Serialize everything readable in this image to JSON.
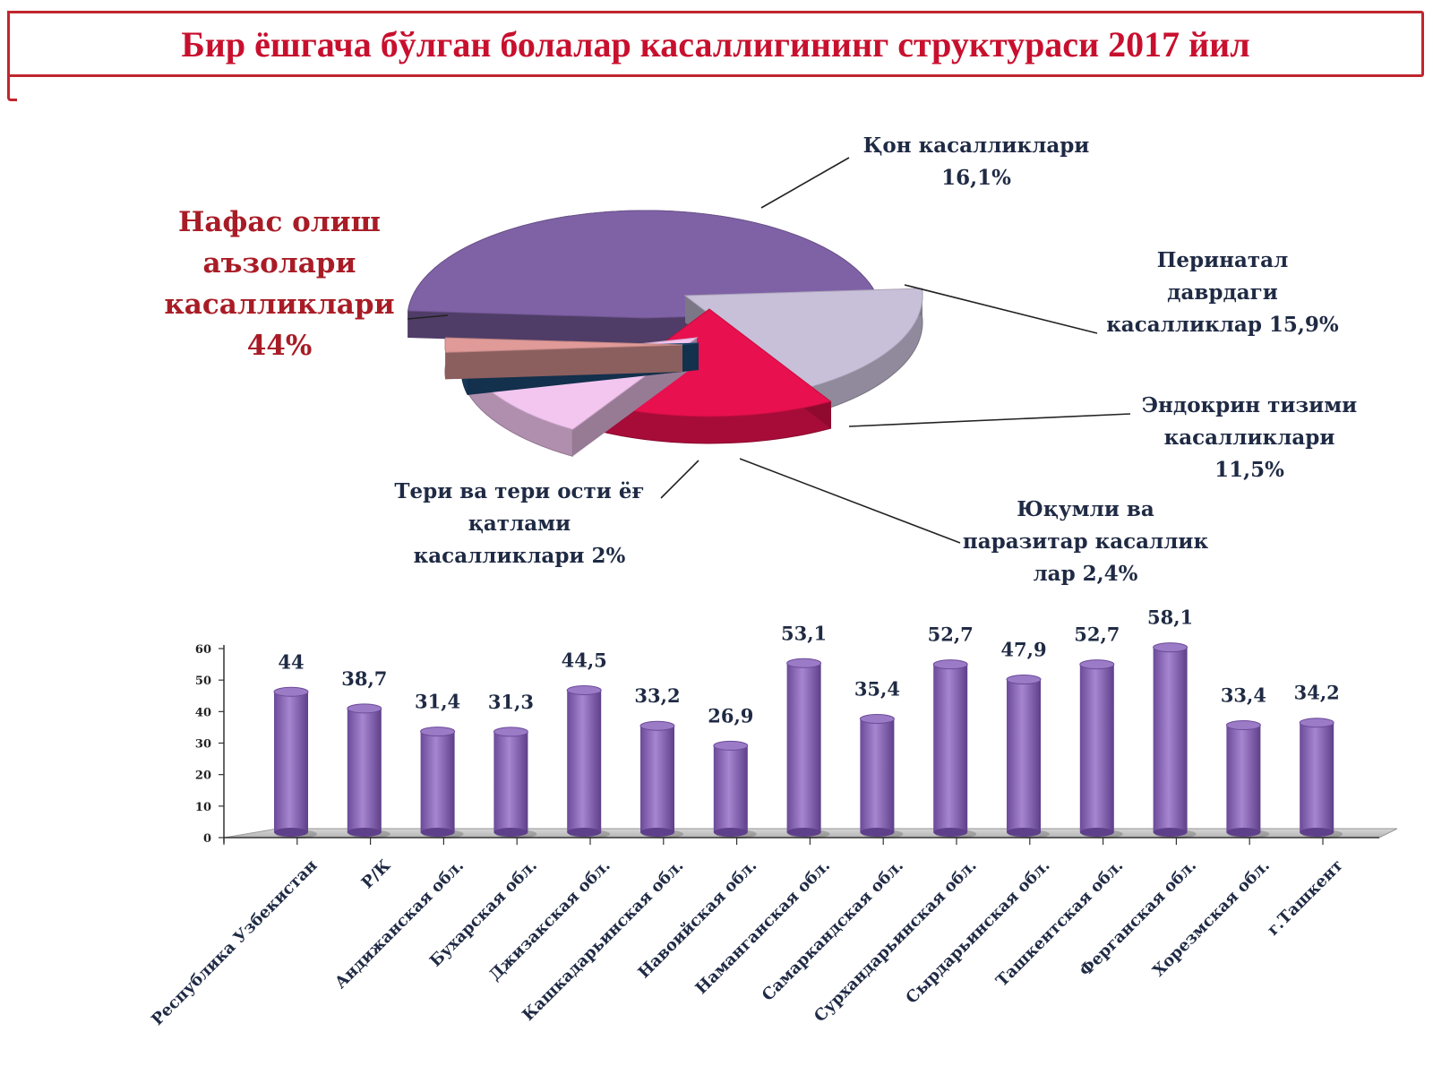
{
  "title": "Бир ёшгача бўлган болалар касаллигининг структураси 2017 йил",
  "colors": {
    "title": "#c8102e",
    "bar": "#8a63b8",
    "highlight_label": "#c8102e"
  },
  "chart_data": [
    {
      "type": "pie",
      "title": "",
      "slices": [
        {
          "label_lines": [
            "Нафас олиш",
            "аъзолари",
            "касалликлари",
            "44%"
          ],
          "value": 44,
          "color": "#7f62a6"
        },
        {
          "label_lines": [
            "Қон касалликлари",
            "16,1%"
          ],
          "value": 16.1,
          "color": "#c8c0d8"
        },
        {
          "label_lines": [
            "Перинатал",
            "даврдаги",
            "касалликлар 15,9%"
          ],
          "value": 15.9,
          "color": "#e8104e"
        },
        {
          "label_lines": [
            "Эндокрин  тизими",
            "касалликлари",
            "11,5%"
          ],
          "value": 11.5,
          "color": "#f3c6f0"
        },
        {
          "label_lines": [
            "Юқумли ва",
            "паразитар касаллик",
            "лар 2,4%"
          ],
          "value": 2.4,
          "color": "#1f4e7a"
        },
        {
          "label_lines": [
            "Тери ва тери ости ёғ",
            "қатлами",
            "касалликлари 2%"
          ],
          "value": 2,
          "color": "#e09a98"
        }
      ]
    },
    {
      "type": "bar",
      "title": "",
      "categories": [
        "Республика Узбекистан",
        "Р/К",
        "Андижанская обл.",
        "Бухарская обл.",
        "Джизакская обл.",
        "Кашкадарьинская обл.",
        "Навоийская обл.",
        "Наманганская обл.",
        "Самаркандская обл.",
        "Сурхандарьинская обл.",
        "Сырдарьинская обл.",
        "Ташкентская обл.",
        "Ферганская обл.",
        "Хорезмская обл.",
        "г.Ташкент"
      ],
      "values": [
        44,
        38.7,
        31.4,
        31.3,
        44.5,
        33.2,
        26.9,
        53.1,
        35.4,
        52.7,
        47.9,
        52.7,
        58.1,
        33.4,
        34.2
      ],
      "value_labels": [
        "44",
        "38,7",
        "31,4",
        "31,3",
        "44,5",
        "33,2",
        "26,9",
        "53,1",
        "35,4",
        "52,7",
        "47,9",
        "52,7",
        "58,1",
        "33,4",
        "34,2"
      ],
      "highlight_index": 12,
      "ylim": [
        0,
        60
      ],
      "yticks": [
        0,
        10,
        20,
        30,
        40,
        50,
        60
      ],
      "xlabel": "",
      "ylabel": ""
    }
  ]
}
